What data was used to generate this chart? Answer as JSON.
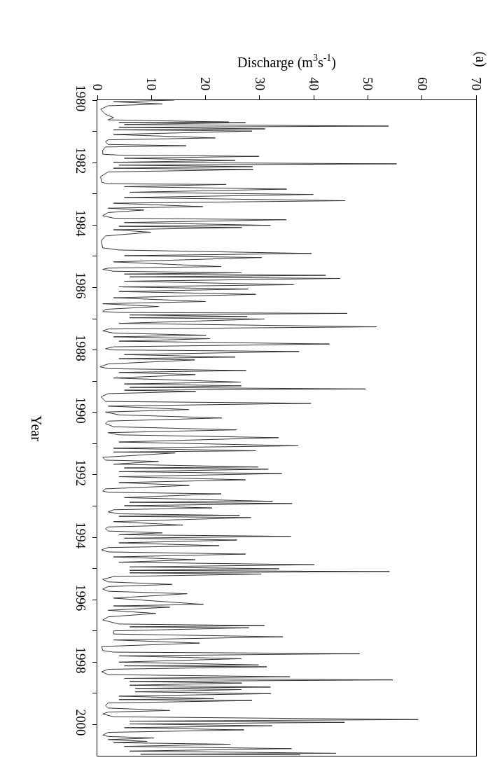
{
  "chart_data": {
    "type": "line",
    "orientation": "horizontal",
    "xlabel": "Discharge (m$^{3}$s$^{-1}$)",
    "ylabel": "Year",
    "annotations": [
      "(a)"
    ],
    "color": "#333333",
    "grid": false,
    "legend": false,
    "marker": "none",
    "line_style": "solid",
    "xlim": [
      0,
      70
    ],
    "xticks": [
      0,
      10,
      20,
      30,
      40,
      50,
      60,
      70
    ],
    "ylim": [
      2001,
      1980
    ],
    "yticks": [
      1980,
      {
        "value": 1981,
        "label": null
      },
      1982,
      {
        "value": 1983,
        "label": null
      },
      1984,
      {
        "value": 1985,
        "label": null
      },
      1986,
      {
        "value": 1987,
        "label": null
      },
      1988,
      {
        "value": 1989,
        "label": null
      },
      1990,
      {
        "value": 1991,
        "label": null
      },
      1992,
      {
        "value": 1993,
        "label": null
      },
      1994,
      {
        "value": 1995,
        "label": null
      },
      1996,
      {
        "value": 1997,
        "label": null
      },
      1998,
      {
        "value": 1999,
        "label": null
      },
      2000
    ],
    "x": [
      1980.0,
      1980.05,
      1980.12,
      1980.18,
      1980.29,
      1980.45,
      1980.56,
      1980.63,
      1980.7,
      1980.71,
      1980.72,
      1980.78,
      1980.83,
      1980.87,
      1980.92,
      1980.95,
      1980.99,
      1981.1,
      1981.21,
      1981.27,
      1981.33,
      1981.42,
      1981.46,
      1981.5,
      1981.6,
      1981.73,
      1981.76,
      1981.8,
      1981.86,
      1981.93,
      1981.99,
      1982.04,
      1982.08,
      1982.13,
      1982.18,
      1982.22,
      1982.3,
      1982.45,
      1982.63,
      1982.68,
      1982.7,
      1982.77,
      1982.85,
      1982.95,
      1983.02,
      1983.12,
      1983.22,
      1983.3,
      1983.41,
      1983.46,
      1983.52,
      1983.6,
      1983.7,
      1983.78,
      1983.83,
      1983.92,
      1984.01,
      1984.04,
      1984.08,
      1984.15,
      1984.23,
      1984.35,
      1984.5,
      1984.73,
      1984.8,
      1984.91,
      1984.98,
      1985.04,
      1985.18,
      1985.33,
      1985.38,
      1985.42,
      1985.48,
      1985.53,
      1985.57,
      1985.61,
      1985.66,
      1985.71,
      1985.8,
      1985.91,
      1985.98,
      1986.05,
      1986.13,
      1986.22,
      1986.33,
      1986.45,
      1986.52,
      1986.61,
      1986.7,
      1986.77,
      1986.8,
      1986.83,
      1986.88,
      1986.93,
      1986.97,
      1987.01,
      1987.15,
      1987.26,
      1987.33,
      1987.39,
      1987.46,
      1987.53,
      1987.58,
      1987.64,
      1987.72,
      1987.81,
      1987.9,
      1987.96,
      1988.0,
      1988.05,
      1988.15,
      1988.23,
      1988.28,
      1988.32,
      1988.45,
      1988.54,
      1988.6,
      1988.66,
      1988.72,
      1988.79,
      1988.9,
      1989.03,
      1989.09,
      1989.15,
      1989.2,
      1989.25,
      1989.29,
      1989.33,
      1989.4,
      1989.5,
      1989.65,
      1989.71,
      1989.8,
      1989.91,
      1989.99,
      1990.08,
      1990.18,
      1990.28,
      1990.36,
      1990.46,
      1990.56,
      1990.65,
      1990.72,
      1990.81,
      1990.95,
      1991.07,
      1991.15,
      1991.23,
      1991.27,
      1991.3,
      1991.44,
      1991.53,
      1991.57,
      1991.66,
      1991.75,
      1991.78,
      1991.82,
      1991.9,
      1991.96,
      1992.06,
      1992.16,
      1992.25,
      1992.34,
      1992.45,
      1992.52,
      1992.56,
      1992.61,
      1992.73,
      1992.85,
      1992.88,
      1992.92,
      1992.99,
      1993.06,
      1993.12,
      1993.19,
      1993.25,
      1993.3,
      1993.33,
      1993.37,
      1993.5,
      1993.61,
      1993.67,
      1993.73,
      1993.8,
      1993.86,
      1993.92,
      1993.97,
      1994.03,
      1994.09,
      1994.18,
      1994.27,
      1994.33,
      1994.4,
      1994.47,
      1994.54,
      1994.63,
      1994.72,
      1994.8,
      1994.88,
      1994.95,
      1995.01,
      1995.06,
      1995.1,
      1995.14,
      1995.18,
      1995.26,
      1995.35,
      1995.43,
      1995.51,
      1995.58,
      1995.66,
      1995.73,
      1995.81,
      1995.95,
      1996.15,
      1996.2,
      1996.24,
      1996.34,
      1996.44,
      1996.55,
      1996.65,
      1996.78,
      1996.83,
      1996.87,
      1996.9,
      1997.0,
      1997.1,
      1997.19,
      1997.29,
      1997.39,
      1997.5,
      1997.63,
      1997.68,
      1997.73,
      1997.8,
      1997.89,
      1998.0,
      1998.09,
      1998.12,
      1998.15,
      1998.23,
      1998.31,
      1998.4,
      1998.47,
      1998.52,
      1998.57,
      1998.62,
      1998.67,
      1998.74,
      1998.8,
      1998.84,
      1998.88,
      1998.95,
      1999.01,
      1999.09,
      1999.17,
      1999.2,
      1999.23,
      1999.31,
      1999.39,
      1999.47,
      1999.55,
      1999.6,
      1999.66,
      1999.75,
      1999.84,
      1999.89,
      1999.93,
      1999.98,
      2000.04,
      2000.1,
      2000.17,
      2000.25,
      2000.34,
      2000.38,
      2000.43,
      2000.48,
      2000.54,
      2000.58,
      2000.63,
      2000.7,
      2000.77,
      2000.85,
      2000.92,
      2000.95,
      2000.97
    ],
    "values": [
      14.2,
      3,
      12,
      2,
      0.6,
      1.5,
      3,
      2,
      24.3,
      4,
      27.4,
      5,
      53.8,
      4,
      31,
      3,
      28.6,
      3,
      21.8,
      2,
      1.5,
      2,
      16.4,
      1.5,
      1,
      1,
      4,
      29.9,
      5,
      25.5,
      3,
      55.3,
      4,
      28.7,
      3,
      28.8,
      2,
      0.6,
      0.8,
      2,
      23.8,
      5,
      35,
      6,
      39.9,
      5,
      45.8,
      3,
      19.5,
      2,
      8.6,
      2,
      1,
      3,
      34.9,
      5,
      32,
      4,
      26.7,
      3,
      9.9,
      1.5,
      0.7,
      1,
      4,
      39.6,
      5,
      30.4,
      3,
      22.9,
      2,
      1,
      3,
      26.6,
      5,
      42.2,
      6,
      44.9,
      5,
      36.3,
      4,
      27.9,
      4,
      29.3,
      3,
      20,
      1,
      11.3,
      1.5,
      1,
      4,
      46.2,
      6,
      27.7,
      6,
      30.9,
      4,
      51.6,
      2,
      1,
      3,
      20.1,
      3,
      20.8,
      4,
      42.9,
      3,
      1.5,
      3,
      37.3,
      5,
      25.5,
      4,
      18,
      2,
      0.5,
      2,
      27.5,
      4,
      18.1,
      3,
      26.5,
      5,
      26.6,
      6,
      49.6,
      5,
      18.2,
      2,
      0.7,
      1.5,
      39.5,
      2,
      16.9,
      1.5,
      4,
      23,
      2,
      1.5,
      3,
      25.7,
      2,
      4,
      33.5,
      4,
      37.1,
      3,
      29.3,
      3,
      14.4,
      1,
      1.5,
      11.3,
      3,
      29.7,
      5,
      31.6,
      4,
      34.1,
      4,
      27.4,
      4,
      17,
      1.5,
      1,
      2,
      22.9,
      5,
      32.4,
      6,
      36,
      5,
      21.2,
      3,
      2,
      4,
      26.3,
      4,
      28.4,
      3,
      15.8,
      2,
      1.5,
      2,
      12,
      4,
      35.8,
      5,
      25.8,
      4,
      22.5,
      2,
      0.8,
      2,
      27.4,
      3,
      18.1,
      4,
      40.1,
      6,
      33.6,
      6,
      54,
      6,
      30.3,
      3,
      1,
      2,
      13.8,
      2,
      1,
      2,
      16.6,
      3,
      19.6,
      3,
      13.4,
      2,
      10.8,
      2,
      1,
      4,
      30.9,
      6,
      28,
      3,
      3,
      34.3,
      3,
      18.9,
      0.8,
      1,
      3,
      48.5,
      4,
      26.6,
      4,
      29.8,
      5,
      31.3,
      2,
      0.8,
      2,
      35.6,
      5,
      54.6,
      6,
      26.7,
      6,
      32,
      7,
      26.6,
      7,
      32.1,
      4,
      21.5,
      4,
      28.6,
      2,
      1.5,
      2,
      13.4,
      2,
      1,
      3,
      59.3,
      6,
      45.7,
      6,
      32.3,
      5,
      27.1,
      2,
      1,
      2,
      10.5,
      2,
      9.2,
      3,
      24.6,
      5,
      35.9,
      6,
      44.1,
      8,
      37.5
    ]
  }
}
